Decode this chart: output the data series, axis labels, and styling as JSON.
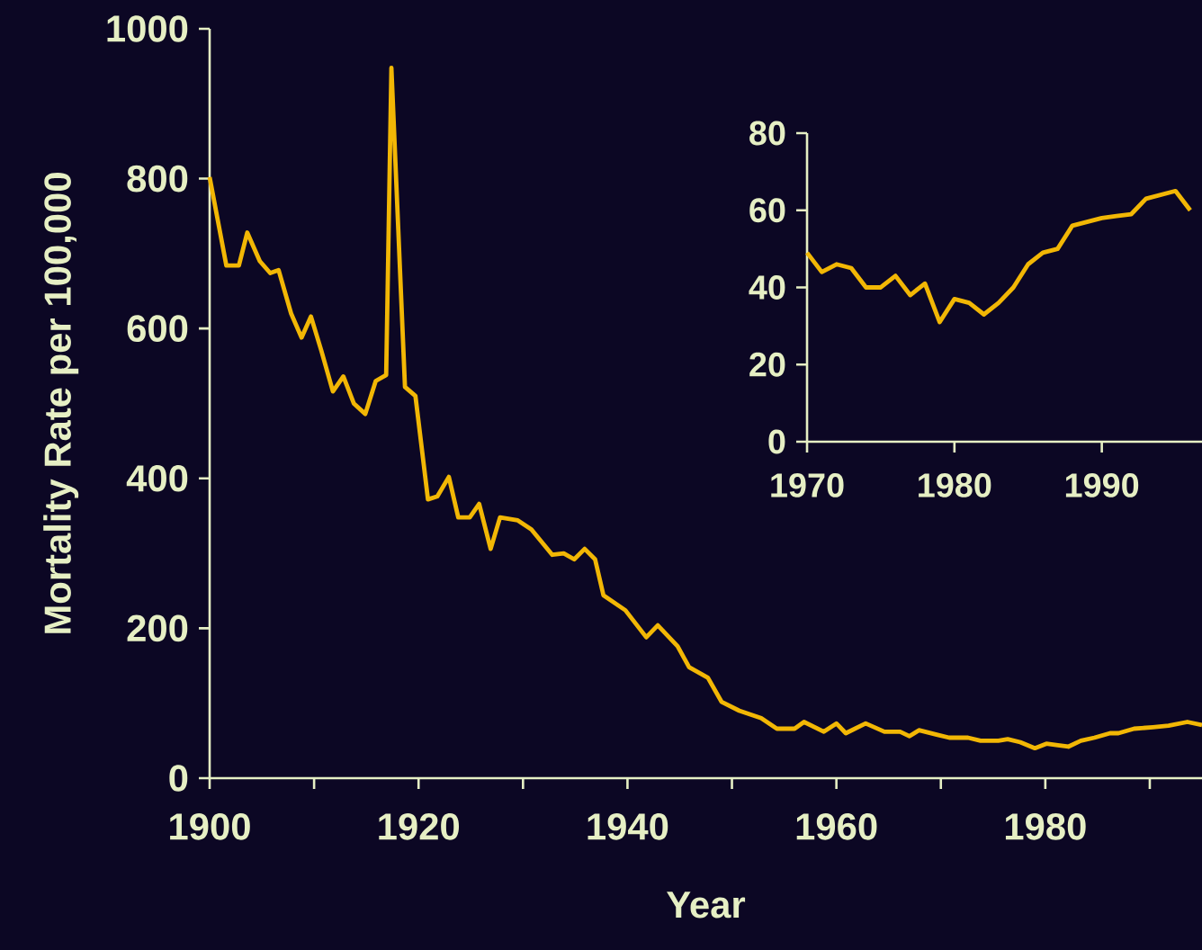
{
  "chart_data": [
    {
      "type": "line",
      "xlabel": "Year",
      "ylabel": "Mortality Rate per 100,000",
      "color": "#f2b705",
      "x": [
        1900,
        1901.6,
        1902.8,
        1903.6,
        1904.8,
        1905.8,
        1906.6,
        1907.8,
        1908.8,
        1909.7,
        1910.7,
        1911.8,
        1912.8,
        1913.8,
        1914.9,
        1915.9,
        1916.9,
        1917.4,
        1918.7,
        1919.7,
        1920.9,
        1921.8,
        1922.9,
        1923.8,
        1924.9,
        1925.8,
        1926.9,
        1927.8,
        1929.5,
        1930.8,
        1932.8,
        1933.9,
        1934.9,
        1935.9,
        1936.9,
        1937.7,
        1939.8,
        1941.8,
        1942.9,
        1944.8,
        1945.9,
        1947.7,
        1949,
        1950.7,
        1952.8,
        1954.3,
        1956,
        1956.9,
        1958.8,
        1960,
        1960.9,
        1962.8,
        1964.6,
        1966.1,
        1967,
        1967.9,
        1969.6,
        1970.8,
        1972.6,
        1973.8,
        1975.5,
        1976.4,
        1977.6,
        1979,
        1980.1,
        1981.2,
        1982.2,
        1983.4,
        1984.7,
        1986.2,
        1987,
        1988.5,
        1990.3,
        1991.8,
        1993.6,
        1995
      ],
      "values": [
        802,
        684,
        684,
        728,
        690,
        674,
        678,
        620,
        588,
        616,
        570,
        516,
        536,
        500,
        486,
        530,
        538,
        948,
        522,
        510,
        372,
        376,
        402,
        348,
        348,
        366,
        306,
        348,
        344,
        332,
        298,
        300,
        292,
        306,
        292,
        244,
        224,
        188,
        204,
        176,
        148,
        134,
        102,
        90,
        80,
        66,
        66,
        75,
        62,
        73,
        60,
        73,
        62,
        62,
        56,
        64,
        58,
        54,
        54,
        50,
        50,
        52,
        48,
        40,
        46,
        44,
        42,
        50,
        54,
        60,
        60,
        66,
        68,
        70,
        75,
        71
      ],
      "xlim": [
        1900,
        1995
      ],
      "ylim": [
        0,
        1000
      ],
      "xticks": [
        1900,
        {
          "value": 1910,
          "label": null
        },
        1920,
        {
          "value": 1930,
          "label": null
        },
        1940,
        {
          "value": 1950,
          "label": null
        },
        1960,
        {
          "value": 1970,
          "label": null
        },
        1980,
        {
          "value": 1990,
          "label": null
        }
      ],
      "yticks": [
        0,
        200,
        400,
        600,
        800,
        1000
      ]
    },
    {
      "type": "line",
      "color": "#f2b705",
      "x": [
        1970,
        1971,
        1972,
        1973,
        1974,
        1975,
        1976,
        1977,
        1978,
        1979,
        1980,
        1981,
        1982,
        1983,
        1984,
        1985,
        1986,
        1987,
        1988,
        1989,
        1990,
        1991,
        1992,
        1993,
        1994,
        1995,
        1996
      ],
      "values": [
        49,
        44,
        46,
        45,
        40,
        40,
        43,
        38,
        41,
        31,
        37,
        36,
        33,
        36,
        40,
        46,
        49,
        50,
        56,
        57,
        58,
        58.5,
        59,
        63,
        64,
        65,
        60
      ],
      "xlim": [
        1970,
        1996.8
      ],
      "ylim": [
        0,
        80
      ],
      "xticks": [
        1970,
        1980,
        1990
      ],
      "yticks": [
        0,
        20,
        40,
        60,
        80
      ]
    }
  ]
}
